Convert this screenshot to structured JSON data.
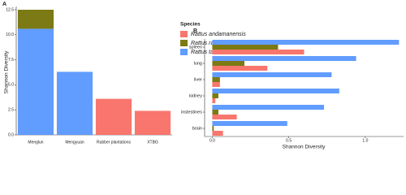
{
  "chart_data": [
    {
      "type": "bar",
      "label": "A",
      "stacked": true,
      "y_label": "Shannon Diversity",
      "categories": [
        "Menglun",
        "Mengyuan",
        "Rubber plantations",
        "XTBG"
      ],
      "series": [
        {
          "name": "Rattus andamanensis",
          "color": "#f8766d",
          "values": [
            null,
            null,
            3.6,
            2.4
          ]
        },
        {
          "name": "Rattus rattus",
          "color": "#7c7a14",
          "values": [
            1.9,
            null,
            null,
            null
          ]
        },
        {
          "name": "Rattus tanezumi",
          "color": "#619cff",
          "values": [
            10.6,
            6.3,
            null,
            null
          ]
        }
      ],
      "legend_title": "Species",
      "legend": "right",
      "ylim": [
        0,
        12.5
      ],
      "yticks": [
        {
          "value": 0,
          "label": "0.0"
        },
        {
          "value": 2.5,
          "label": "2.5"
        },
        {
          "value": 5,
          "label": "5.0"
        },
        {
          "value": 7.5,
          "label": "7.5"
        },
        {
          "value": 10,
          "label": "10.0"
        },
        {
          "value": 12.5,
          "label": "12.5"
        }
      ],
      "grid": false
    },
    {
      "type": "bar",
      "label": "B",
      "orientation": "horizontal",
      "x_label": "Shannon Diversity",
      "categories": [
        "spleen",
        "lung",
        "liver",
        "kidney",
        "instestines",
        "brain"
      ],
      "series": [
        {
          "color": "#619cff",
          "values": [
            1.22,
            0.94,
            0.78,
            0.83,
            0.73,
            0.49
          ]
        },
        {
          "color": "#7c7a14",
          "values": [
            0.43,
            0.21,
            0.05,
            0.04,
            0.04,
            0.01
          ]
        },
        {
          "color": "#f8766d",
          "values": [
            0.6,
            0.36,
            0.05,
            0.02,
            0.16,
            0.07
          ]
        }
      ],
      "xlim": [
        -0.05,
        1.25
      ],
      "xticks": [
        {
          "value": 0,
          "label": "0.0"
        },
        {
          "value": 0.5,
          "label": "0.5"
        },
        {
          "value": 1,
          "label": "1.0"
        }
      ],
      "grid": false
    }
  ]
}
